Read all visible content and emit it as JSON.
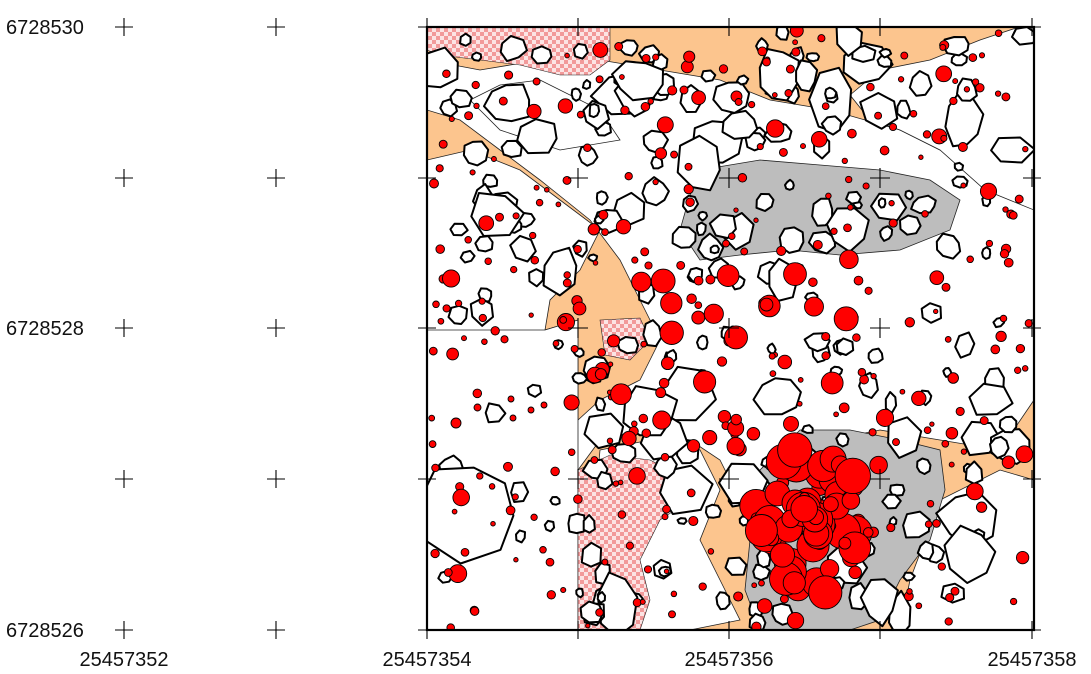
{
  "map": {
    "coordinate_labels": {
      "northing": [
        "6728530",
        "6728528",
        "6728526"
      ],
      "easting": [
        "25457352",
        "25457354",
        "25457356",
        "25457358"
      ]
    },
    "colors": {
      "sand_area": "#fcc58e",
      "gravel_area": "#bdbdbd",
      "checker_area": "#f29a9a",
      "stone_fill": "#ffffff",
      "find_marker": "#ff0000",
      "outline": "#000000"
    }
  }
}
